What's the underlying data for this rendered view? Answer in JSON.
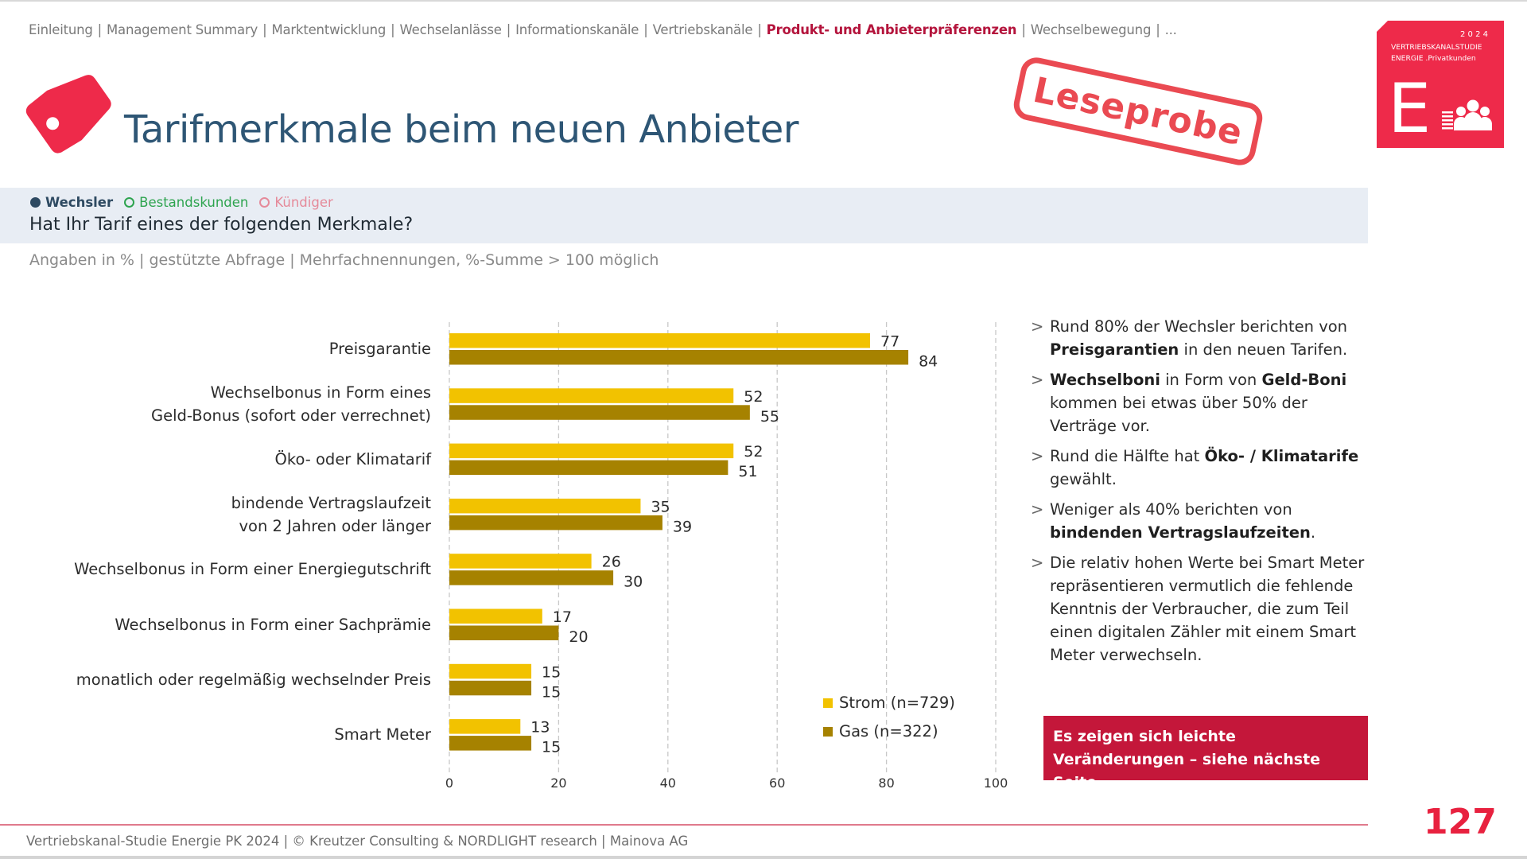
{
  "nav": {
    "items": [
      {
        "label": "Einleitung",
        "active": false
      },
      {
        "label": "Management Summary",
        "active": false
      },
      {
        "label": "Marktentwicklung",
        "active": false
      },
      {
        "label": "Wechselanlässe",
        "active": false
      },
      {
        "label": "Informationskanäle",
        "active": false
      },
      {
        "label": "Vertriebskanäle",
        "active": false
      },
      {
        "label": "Produkt- und Anbieterpräferenzen",
        "active": true
      },
      {
        "label": "Wechselbewegung",
        "active": false
      },
      {
        "label": "...",
        "active": false
      }
    ],
    "separator": "|"
  },
  "logo": {
    "year": "2 0 2 4",
    "line1": "VERTRIEBSKANALSTUDIE",
    "line2": "ENERGIE  .Privatkunden",
    "letter": "E",
    "color": "#ee2a4a"
  },
  "stamp": {
    "text": "Leseprobe",
    "color": "#ea4a52"
  },
  "header": {
    "icon": "price-tag-icon",
    "title": "Tarifmerkmale beim neuen Anbieter"
  },
  "filters": [
    {
      "label": "Wechsler",
      "state": "selected",
      "color": "#2e4a62"
    },
    {
      "label": "Bestandskunden",
      "state": "unselected",
      "color": "#2ea44f"
    },
    {
      "label": "Kündiger",
      "state": "unselected",
      "color": "#e58a9a"
    }
  ],
  "question": "Hat Ihr Tarif eines der folgenden Merkmale?",
  "subtitle": "Angaben in % | gestützte Abfrage | Mehrfachnennungen, %-Summe > 100 möglich",
  "chart_data": {
    "type": "bar",
    "orientation": "horizontal",
    "title": "",
    "xlabel": "",
    "ylabel": "",
    "xlim": [
      0,
      100
    ],
    "xticks": [
      "0",
      "20",
      "40",
      "60",
      "80",
      "100"
    ],
    "grid": "vertical-dashed",
    "legend_position": "bottom-right",
    "categories": [
      [
        "Preisgarantie"
      ],
      [
        "Wechselbonus in Form eines",
        "Geld-Bonus (sofort oder verrechnet)"
      ],
      [
        "Öko- oder Klimatarif"
      ],
      [
        "bindende Vertragslaufzeit",
        "von 2 Jahren oder länger"
      ],
      [
        "Wechselbonus in Form einer Energiegutschrift"
      ],
      [
        "Wechselbonus in Form einer Sachprämie"
      ],
      [
        "monatlich oder regelmäßig wechselnder Preis"
      ],
      [
        "Smart Meter"
      ]
    ],
    "series": [
      {
        "name": "Strom (n=729)",
        "color": "#f2c200",
        "values": [
          77,
          52,
          52,
          35,
          26,
          17,
          15,
          13
        ]
      },
      {
        "name": "Gas (n=322)",
        "color": "#a68200",
        "values": [
          84,
          55,
          51,
          39,
          30,
          20,
          15,
          15
        ]
      }
    ]
  },
  "insights": [
    {
      "parts": [
        {
          "t": "Rund 80% der Wechsler berichten von ",
          "b": false
        },
        {
          "t": "Preisgarantien",
          "b": true
        },
        {
          "t": " in den neuen Tarifen.",
          "b": false
        }
      ]
    },
    {
      "parts": [
        {
          "t": "Wechselboni",
          "b": true
        },
        {
          "t": " in Form von ",
          "b": false
        },
        {
          "t": "Geld-Boni",
          "b": true
        },
        {
          "t": " kommen bei etwas über 50% der Verträge vor.",
          "b": false
        }
      ]
    },
    {
      "parts": [
        {
          "t": "Rund die Hälfte hat ",
          "b": false
        },
        {
          "t": "Öko- / Klimatarife",
          "b": true
        },
        {
          "t": " gewählt.",
          "b": false
        }
      ]
    },
    {
      "parts": [
        {
          "t": "Weniger als 40% berichten von ",
          "b": false
        },
        {
          "t": "bindenden Vertragslaufzeiten",
          "b": true
        },
        {
          "t": ".",
          "b": false
        }
      ]
    },
    {
      "parts": [
        {
          "t": "Die relativ hohen Werte bei Smart Meter repräsentieren vermutlich die fehlende Kenntnis der Verbraucher, die zum Teil einen digitalen Zähler mit einem Smart Meter verwechseln.",
          "b": false
        }
      ]
    }
  ],
  "bullet_marker": ">",
  "callout": "Es zeigen sich leichte Veränderungen – siehe nächste Seite.",
  "callout_color": "#c4173a",
  "footer": "Vertriebskanal-Studie Energie PK 2024 | © Kreutzer Consulting & NORDLIGHT research | Mainova AG",
  "page_number": "127"
}
